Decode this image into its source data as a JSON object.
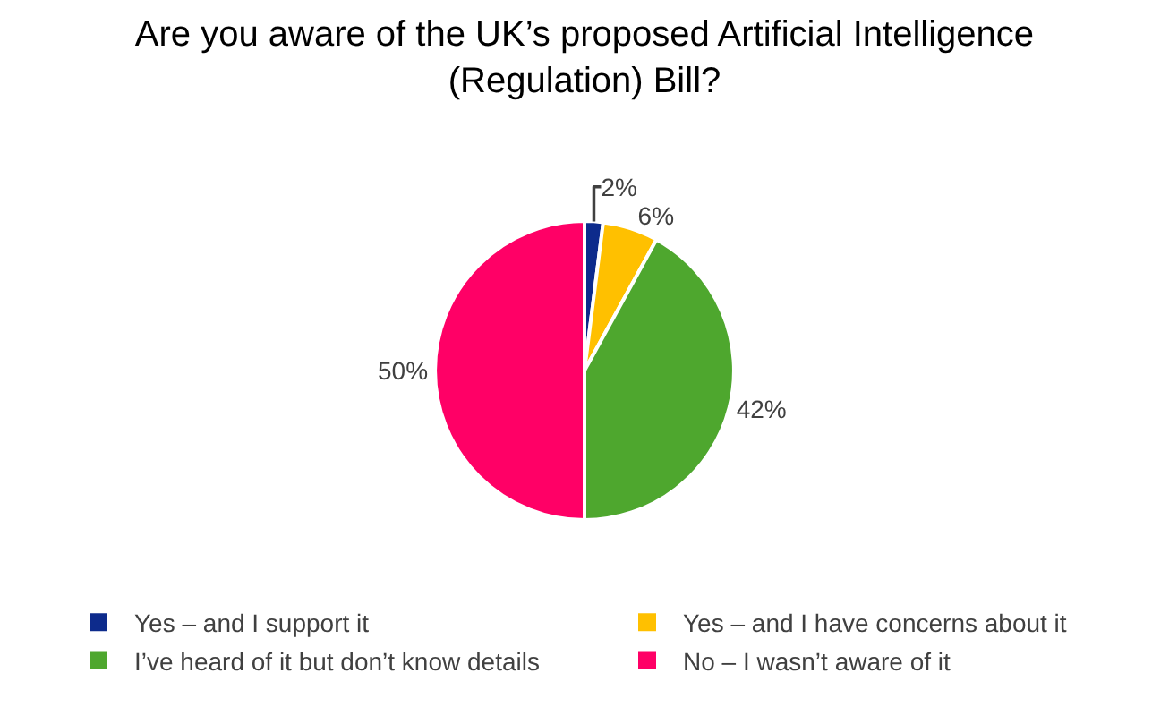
{
  "chart_data": {
    "type": "pie",
    "title": "Are you aware of the UK’s proposed Artificial Intelligence (Regulation) Bill?",
    "categories": [
      "Yes – and I support it",
      "Yes – and I have concerns about it",
      "I’ve heard of it but don’t know details",
      "No – I wasn’t aware of it"
    ],
    "values": [
      2,
      6,
      42,
      50
    ],
    "value_labels": [
      "2%",
      "6%",
      "42%",
      "50%"
    ],
    "colors": [
      "#0d2b8c",
      "#ffc000",
      "#4ea72e",
      "#ff0066"
    ],
    "legend": "bottom"
  }
}
